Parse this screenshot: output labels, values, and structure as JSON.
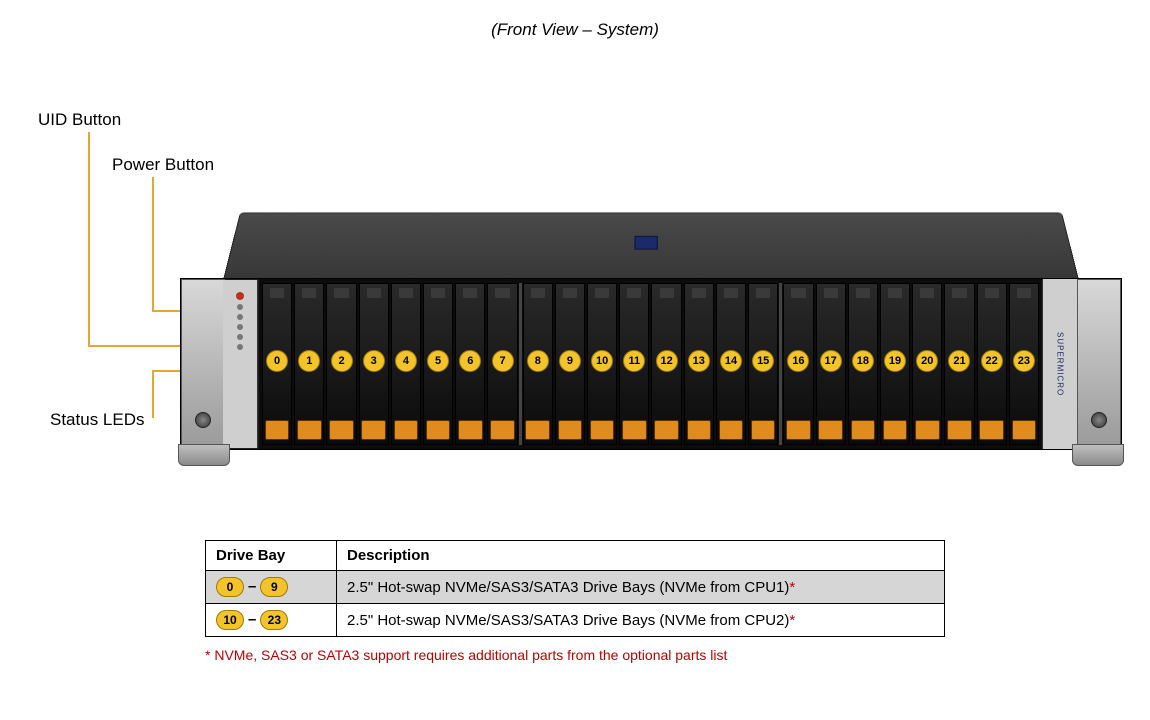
{
  "title": "(Front View – System)",
  "callouts": {
    "uid": "UID Button",
    "power": "Power Button",
    "leds": "Status LEDs"
  },
  "brand": "SUPERMICRO",
  "drive_bays": {
    "count": 24,
    "label_color": "#f2c32b",
    "label_border": "#a07c00",
    "tab_color": "#e08b1e",
    "groups": [
      [
        0,
        1,
        2,
        3,
        4,
        5,
        6,
        7
      ],
      [
        8,
        9,
        10,
        11,
        12,
        13,
        14,
        15
      ],
      [
        16,
        17,
        18,
        19,
        20,
        21,
        22,
        23
      ]
    ]
  },
  "table": {
    "headers": [
      "Drive Bay",
      "Description"
    ],
    "rows": [
      {
        "from": "0",
        "to": "9",
        "desc": "2.5\" Hot-swap NVMe/SAS3/SATA3 Drive Bays (NVMe from CPU1)",
        "star": "*",
        "shaded": true
      },
      {
        "from": "10",
        "to": "23",
        "desc": "2.5\" Hot-swap NVMe/SAS3/SATA3 Drive Bays (NVMe from CPU2)",
        "star": "*",
        "shaded": false
      }
    ]
  },
  "footnote": "* NVMe, SAS3 or SATA3 support requires additional parts from the optional parts list",
  "colors": {
    "callout_line": "#e8a62e",
    "chassis_dark": "#1e1e1e",
    "chassis_metal_light": "#d8d8d8",
    "table_shade": "#d6d6d6",
    "asterisk": "#c00000"
  },
  "typography": {
    "title_fontsize": 17,
    "label_fontsize": 17,
    "table_fontsize": 15,
    "footnote_fontsize": 14,
    "bay_num_fontsize": 11
  }
}
